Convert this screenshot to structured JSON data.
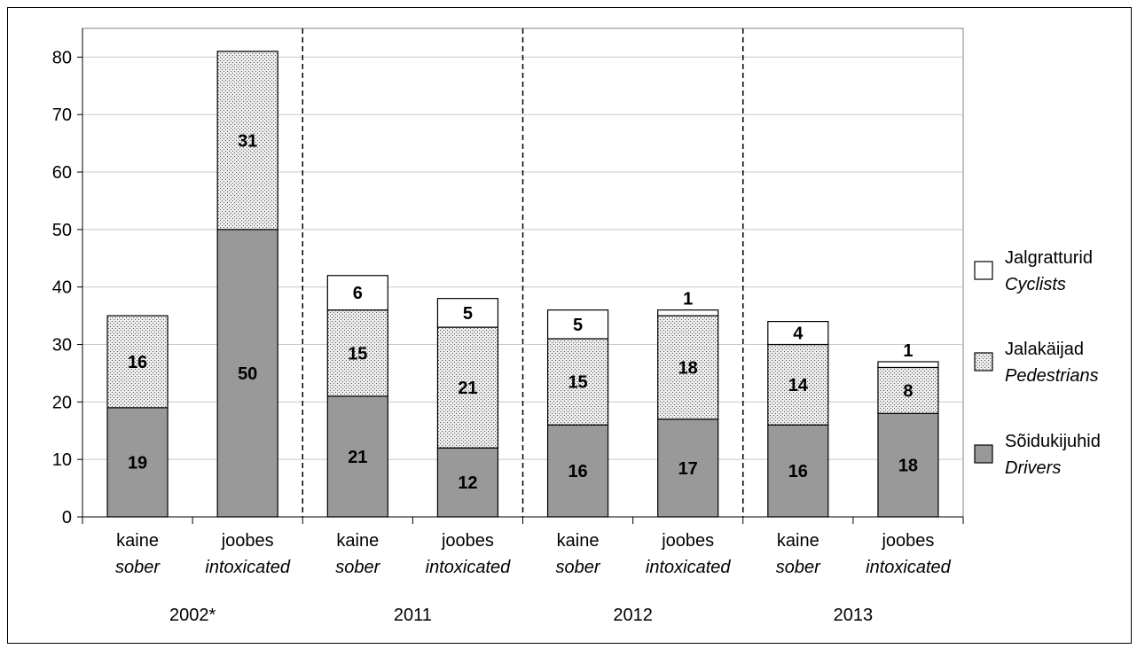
{
  "chart_data": {
    "type": "bar",
    "stacked": true,
    "title": "",
    "xlabel": "",
    "ylabel": "",
    "ylim": [
      0,
      85
    ],
    "yticks": [
      0,
      10,
      20,
      30,
      40,
      50,
      60,
      70,
      80
    ],
    "grid": true,
    "legend_position": "right",
    "groups": [
      "2002*",
      "2011",
      "2012",
      "2013"
    ],
    "categories": [
      {
        "et": "kaine",
        "en": "sober",
        "group": "2002*"
      },
      {
        "et": "joobes",
        "en": "intoxicated",
        "group": "2002*"
      },
      {
        "et": "kaine",
        "en": "sober",
        "group": "2011"
      },
      {
        "et": "joobes",
        "en": "intoxicated",
        "group": "2011"
      },
      {
        "et": "kaine",
        "en": "sober",
        "group": "2012"
      },
      {
        "et": "joobes",
        "en": "intoxicated",
        "group": "2012"
      },
      {
        "et": "kaine",
        "en": "sober",
        "group": "2013"
      },
      {
        "et": "joobes",
        "en": "intoxicated",
        "group": "2013"
      }
    ],
    "series": [
      {
        "name": "Sõidukijuhid",
        "name_en": "Drivers",
        "pattern": "solid",
        "color": "#999999",
        "values": [
          19,
          50,
          21,
          12,
          16,
          17,
          16,
          18
        ]
      },
      {
        "name": "Jalakäijad",
        "name_en": "Pedestrians",
        "pattern": "dotted",
        "color": "#d9d9d9",
        "values": [
          16,
          31,
          15,
          21,
          15,
          18,
          14,
          8
        ]
      },
      {
        "name": "Jalgratturid",
        "name_en": "Cyclists",
        "pattern": "white",
        "color": "#ffffff",
        "values": [
          0,
          0,
          6,
          5,
          5,
          1,
          4,
          1
        ]
      }
    ],
    "legend_order": [
      "Jalgratturid",
      "Jalakäijad",
      "Sõidukijuhid"
    ]
  }
}
